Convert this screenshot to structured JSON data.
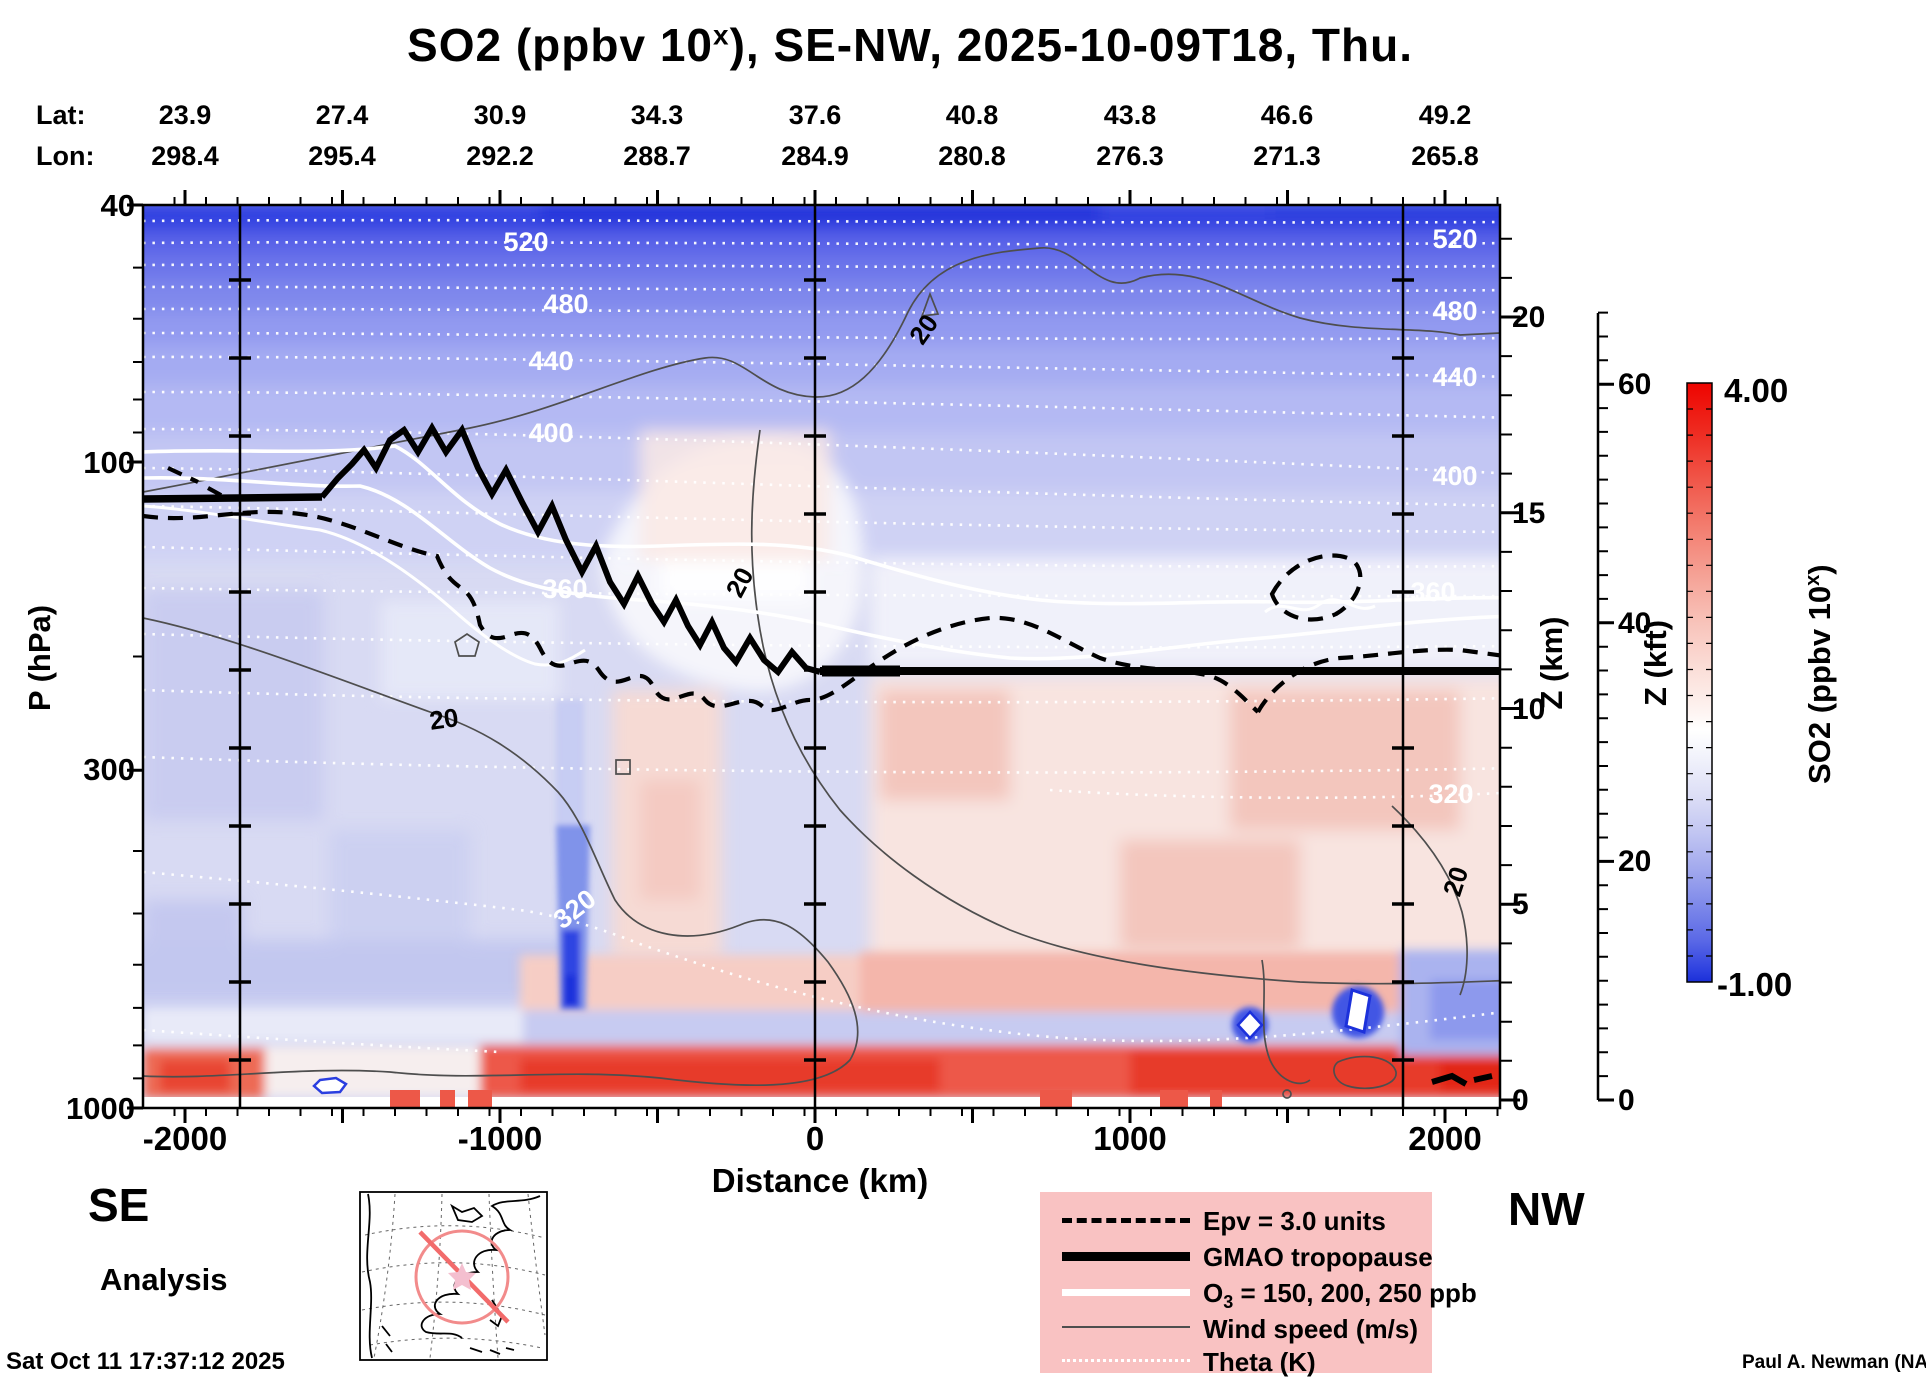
{
  "title": {
    "pre": "SO2 (ppbv 10",
    "sup": "x",
    "post": "), SE-NW, 2025-10-09T18, Thu."
  },
  "top_axis": {
    "lat_label": "Lat:",
    "lon_label": "Lon:",
    "lat_values": [
      "23.9",
      "27.4",
      "30.9",
      "34.3",
      "37.6",
      "40.8",
      "43.8",
      "46.6",
      "49.2"
    ],
    "lon_values": [
      "298.4",
      "295.4",
      "292.2",
      "288.7",
      "284.9",
      "280.8",
      "276.3",
      "271.3",
      "265.8"
    ]
  },
  "left_axis": {
    "label": "P (hPa)",
    "ticks": [
      "40",
      "100",
      "300",
      "1000"
    ]
  },
  "bottom_axis": {
    "label": "Distance (km)",
    "ticks": [
      "-2000",
      "-1000",
      "0",
      "1000",
      "2000"
    ]
  },
  "right_axis_km": {
    "label": "Z (km)",
    "ticks": [
      "20",
      "15",
      "10",
      "5",
      "0"
    ]
  },
  "right_axis_kft": {
    "label": "Z (kft)",
    "ticks": [
      "60",
      "40",
      "20",
      "0"
    ]
  },
  "colorbar": {
    "max": "4.00",
    "min": "-1.00",
    "title_pre": "SO2 (ppbv 10",
    "title_sup": "x",
    "title_post": ")"
  },
  "plot_labels": {
    "theta_left": [
      "520",
      "480",
      "440",
      "400",
      "360",
      "320"
    ],
    "theta_right": [
      "520",
      "480",
      "440",
      "400",
      "360",
      "320"
    ],
    "wind": [
      "20",
      "20",
      "20",
      "20"
    ]
  },
  "endpoints": {
    "start": "SE",
    "end": "NW"
  },
  "analysis_label": "Analysis",
  "timestamp": "Sat Oct 11 17:37:12 2025",
  "attribution": "Paul A. Newman (NASA",
  "legend": {
    "entries": [
      {
        "label": "Epv = 3.0 units",
        "style": "dashed-black"
      },
      {
        "label": "GMAO tropopause",
        "style": "thick-black"
      },
      {
        "label_pre": "O",
        "label_sub": "3",
        "label_post": " = 150, 200, 250 ppb",
        "style": "thick-white"
      },
      {
        "label": "Wind speed (m/s)",
        "style": "thin-gray"
      },
      {
        "label": "Theta (K)",
        "style": "dotted-white"
      }
    ]
  },
  "colors": {
    "legend_background": "#f9c2c2",
    "deep_red": "#ee0400",
    "deep_blue": "#1b2fd8",
    "background_lavender": "#d8daf3",
    "map_circle": "#f28b8b"
  },
  "chart_data": {
    "type": "heatmap",
    "subtype": "vertical-cross-section-curtain",
    "field": "SO2",
    "units": "ppbv 10^x",
    "section_orientation": "SE-NW",
    "valid_time": "2025-10-09T18",
    "weekday": "Thu",
    "x_axis": {
      "label": "Distance (km)",
      "ticks": [
        -2000,
        -1000,
        0,
        1000,
        2000
      ],
      "range": [
        -2100,
        2150
      ]
    },
    "y_axis_pressure": {
      "label": "P (hPa)",
      "scale": "log",
      "ticks": [
        40,
        100,
        300,
        1000
      ],
      "range": [
        40,
        1000
      ]
    },
    "y_axis_height_km": {
      "label": "Z (km)",
      "ticks": [
        20,
        15,
        10,
        5,
        0
      ]
    },
    "y_axis_height_kft": {
      "label": "Z (kft)",
      "ticks": [
        60,
        40,
        20,
        0
      ]
    },
    "lat_points": [
      23.9,
      27.4,
      30.9,
      34.3,
      37.6,
      40.8,
      43.8,
      46.6,
      49.2
    ],
    "lon_points": [
      298.4,
      295.4,
      292.2,
      288.7,
      284.9,
      280.8,
      276.3,
      271.3,
      265.8
    ],
    "colorbar": {
      "min": -1.0,
      "max": 4.0,
      "colormap": "blue-white-red"
    },
    "waypoint_lines_km": [
      -1800,
      0,
      1850
    ],
    "overlays": [
      {
        "name": "Epv",
        "value": "3.0 units",
        "style": "dashed-black"
      },
      {
        "name": "GMAO tropopause",
        "style": "thick-black"
      },
      {
        "name": "O3",
        "levels_ppb": [
          150,
          200,
          250
        ],
        "style": "solid-white"
      },
      {
        "name": "Wind speed",
        "units": "m/s",
        "labeled_level": 20,
        "style": "thin-gray"
      },
      {
        "name": "Theta",
        "units": "K",
        "labeled_levels": [
          320,
          360,
          400,
          440,
          480,
          520
        ],
        "style": "dotted-white"
      }
    ],
    "features": [
      "Very low SO2 (deep blue) across the stratospheric top of the section near 40-60 hPa",
      "Enhanced SO2 (red band) in the boundary layer below about 700 hPa from roughly -500 km to the NW end",
      "Narrow low-SO2 blue plume near -800 km between about 400 and 900 hPa",
      "Tropopause near 120 hPa at the SE end, descending in a jagged fold to about 300 hPa over the NW half",
      "Slightly enhanced SO2 (pale pink) column above the boundary layer near and NW of 0 km"
    ]
  }
}
